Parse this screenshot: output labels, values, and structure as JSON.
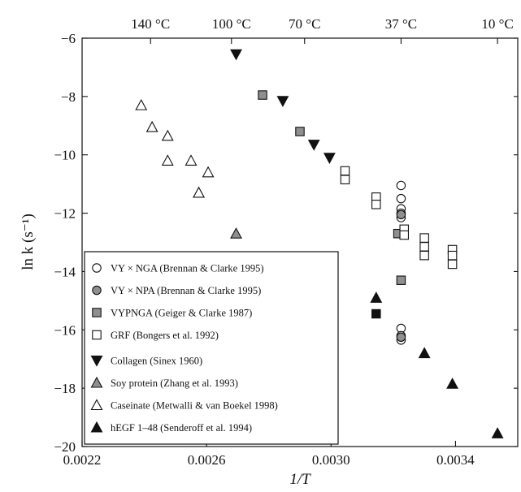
{
  "chart_data": {
    "type": "scatter",
    "title": "",
    "xlabel": "1/T",
    "ylabel": "ln k (s⁻¹)",
    "xlim": [
      0.0022,
      0.0036
    ],
    "ylim": [
      -20,
      -6
    ],
    "x_ticks": [
      0.0022,
      0.0026,
      0.003,
      0.0034
    ],
    "x_tick_labels": [
      "0.0022",
      "0.0026",
      "0.0030",
      "0.0034"
    ],
    "y_ticks": [
      -20,
      -18,
      -16,
      -14,
      -12,
      -10,
      -8,
      -6
    ],
    "y_tick_labels": [
      "−20",
      "−18",
      "−16",
      "−14",
      "−12",
      "−10",
      "−8",
      "−6"
    ],
    "top_axis": [
      {
        "label": "140 °C",
        "x": 0.00242
      },
      {
        "label": "100 °C",
        "x": 0.00268
      },
      {
        "label": "70 °C",
        "x": 0.002915
      },
      {
        "label": "37 °C",
        "x": 0.003225
      },
      {
        "label": "10 °C",
        "x": 0.003535
      }
    ],
    "grid": false,
    "legend_position": "bottom-left",
    "series": [
      {
        "name": "VY × NGA (Brennan & Clarke 1995)",
        "marker": "circle-open",
        "points": [
          [
            0.003225,
            -11.05
          ],
          [
            0.003225,
            -11.5
          ],
          [
            0.003225,
            -11.85
          ],
          [
            0.003225,
            -12.0
          ],
          [
            0.003225,
            -12.15
          ],
          [
            0.003225,
            -15.95
          ],
          [
            0.003225,
            -16.2
          ],
          [
            0.003225,
            -16.35
          ]
        ]
      },
      {
        "name": "VY × NPA (Brennan & Clarke 1995)",
        "marker": "circle-gray",
        "points": [
          [
            0.003225,
            -12.05
          ],
          [
            0.003225,
            -16.25
          ]
        ]
      },
      {
        "name": "VYPNGA (Geiger & Clarke 1987)",
        "marker": "square-gray",
        "points": [
          [
            0.00278,
            -7.95
          ],
          [
            0.0029,
            -9.2
          ],
          [
            0.003215,
            -12.7
          ],
          [
            0.003225,
            -14.3
          ]
        ]
      },
      {
        "name": "GRF (Bongers et al. 1992)",
        "marker": "square-open",
        "points": [
          [
            0.003045,
            -10.55
          ],
          [
            0.003045,
            -10.85
          ],
          [
            0.003145,
            -11.45
          ],
          [
            0.003145,
            -11.7
          ],
          [
            0.003235,
            -12.55
          ],
          [
            0.003235,
            -12.75
          ],
          [
            0.0033,
            -12.85
          ],
          [
            0.0033,
            -13.15
          ],
          [
            0.0033,
            -13.45
          ],
          [
            0.00339,
            -13.25
          ],
          [
            0.00339,
            -13.45
          ],
          [
            0.00339,
            -13.75
          ]
        ]
      },
      {
        "name": "Collagen (Sinex 1960)",
        "marker": "tri-down-filled",
        "points": [
          [
            0.002695,
            -6.55
          ],
          [
            0.002845,
            -8.15
          ],
          [
            0.002945,
            -9.65
          ],
          [
            0.002995,
            -10.1
          ]
        ]
      },
      {
        "name": "Soy protein (Zhang et al. 1993)",
        "marker": "tri-up-gray",
        "points": [
          [
            0.002575,
            -11.3
          ],
          [
            0.002695,
            -12.7
          ]
        ]
      },
      {
        "name": "Caseinate (Metwalli & van Boekel 1998)",
        "marker": "tri-up-open",
        "points": [
          [
            0.00239,
            -8.3
          ],
          [
            0.002425,
            -9.05
          ],
          [
            0.002475,
            -9.35
          ],
          [
            0.002475,
            -10.2
          ],
          [
            0.00255,
            -10.2
          ],
          [
            0.002605,
            -10.6
          ],
          [
            0.002575,
            -11.3
          ]
        ]
      },
      {
        "name": "hEGF 1–48 (Senderoff et al. 1994)",
        "marker": "tri-up-filled",
        "points": [
          [
            0.003145,
            -14.9
          ],
          [
            0.0033,
            -16.8
          ],
          [
            0.00339,
            -17.85
          ],
          [
            0.003535,
            -19.55
          ]
        ]
      },
      {
        "name": "",
        "marker": "square-filled",
        "points": [
          [
            0.003145,
            -15.45
          ]
        ]
      }
    ]
  },
  "legend": {
    "entries": [
      {
        "marker": "circle-open",
        "label": "VY × NGA (Brennan & Clarke 1995)"
      },
      {
        "marker": "circle-gray",
        "label": "VY × NPA (Brennan & Clarke 1995)"
      },
      {
        "marker": "square-gray",
        "label": "VYPNGA (Geiger & Clarke 1987)"
      },
      {
        "marker": "square-open",
        "label": "GRF (Bongers et al. 1992)"
      },
      {
        "marker": "tri-down-filled",
        "label": "Collagen (Sinex 1960)"
      },
      {
        "marker": "tri-up-gray",
        "label": "Soy protein (Zhang et al. 1993)"
      },
      {
        "marker": "tri-up-open",
        "label": "Caseinate (Metwalli & van Boekel 1998)"
      },
      {
        "marker": "tri-up-filled",
        "label": "hEGF 1–48 (Senderoff et al. 1994)"
      }
    ]
  },
  "colors": {
    "ink": "#111111",
    "gray_fill": "#8f8f8f",
    "background": "#ffffff"
  }
}
